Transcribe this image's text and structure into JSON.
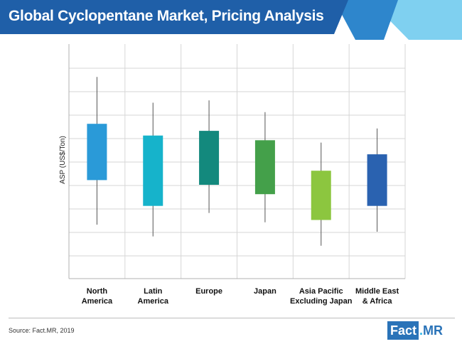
{
  "header": {
    "title": "Global Cyclopentane Market, Pricing Analysis"
  },
  "colors": {
    "banner_dark": "#1f5fa8",
    "banner_mid": "#2e86cc",
    "banner_light": "#7fd0f0",
    "grid": "#d6d6d6",
    "axis": "#b0b0b0",
    "whisker": "#555555"
  },
  "chart_data": {
    "type": "candlestick",
    "title": "",
    "xlabel": "",
    "ylabel": "ASP (US$/Ton)",
    "y_tick_labels_shown": false,
    "grid": true,
    "ylim": [
      0,
      10
    ],
    "categories": [
      [
        "North",
        "America"
      ],
      [
        "Latin",
        "America"
      ],
      [
        "Europe"
      ],
      [
        "Japan"
      ],
      [
        "Asia Pacific",
        "Excluding Japan"
      ],
      [
        "Middle East",
        "& Africa"
      ]
    ],
    "series": [
      {
        "name": "North America",
        "low": 2.3,
        "q1": 4.2,
        "q3": 6.6,
        "high": 8.6,
        "color": "#2a9ad8"
      },
      {
        "name": "Latin America",
        "low": 1.8,
        "q1": 3.1,
        "q3": 6.1,
        "high": 7.5,
        "color": "#16b3cb"
      },
      {
        "name": "Europe",
        "low": 2.8,
        "q1": 4.0,
        "q3": 6.3,
        "high": 7.6,
        "color": "#13897d"
      },
      {
        "name": "Japan",
        "low": 2.4,
        "q1": 3.6,
        "q3": 5.9,
        "high": 7.1,
        "color": "#44a04a"
      },
      {
        "name": "Asia Pacific Excluding Japan",
        "low": 1.4,
        "q1": 2.5,
        "q3": 4.6,
        "high": 5.8,
        "color": "#8cc63f"
      },
      {
        "name": "Middle East & Africa",
        "low": 2.0,
        "q1": 3.1,
        "q3": 5.3,
        "high": 6.4,
        "color": "#2a62b0"
      }
    ]
  },
  "footer": {
    "source": "Source: Fact.MR, 2019",
    "logo_fact": "Fact",
    "logo_dot": ".",
    "logo_mr": "MR"
  }
}
